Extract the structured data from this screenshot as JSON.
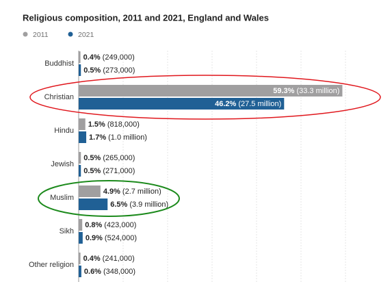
{
  "chart_data": {
    "type": "barh",
    "title": "Religious composition, 2011 and 2021, England and Wales",
    "categories": [
      "Buddhist",
      "Christian",
      "Hindu",
      "Jewish",
      "Muslim",
      "Sikh",
      "Other religion"
    ],
    "series": [
      {
        "name": "2011",
        "color": "#a09fa0",
        "values": [
          0.4,
          59.3,
          1.5,
          0.5,
          4.9,
          0.8,
          0.4
        ],
        "value_labels": [
          "0.4%",
          "59.3%",
          "1.5%",
          "0.5%",
          "4.9%",
          "0.8%",
          "0.4%"
        ],
        "count_labels": [
          "(249,000)",
          "(33.3 million)",
          "(818,000)",
          "(265,000)",
          "(2.7 million)",
          "(423,000)",
          "(241,000)"
        ]
      },
      {
        "name": "2021",
        "color": "#206095",
        "values": [
          0.5,
          46.2,
          1.7,
          0.5,
          6.5,
          0.9,
          0.6
        ],
        "value_labels": [
          "0.5%",
          "46.2%",
          "1.7%",
          "0.5%",
          "6.5%",
          "0.9%",
          "0.6%"
        ],
        "count_labels": [
          "(273,000)",
          "(27.5 million)",
          "(1.0 million)",
          "(271,000)",
          "(3.9 million)",
          "(524,000)",
          "(348,000)"
        ]
      }
    ],
    "xlim": [
      0,
      70
    ],
    "xticks": [
      0,
      10,
      20,
      30,
      40,
      50,
      60
    ],
    "grid": true,
    "legend": "top-left"
  }
}
